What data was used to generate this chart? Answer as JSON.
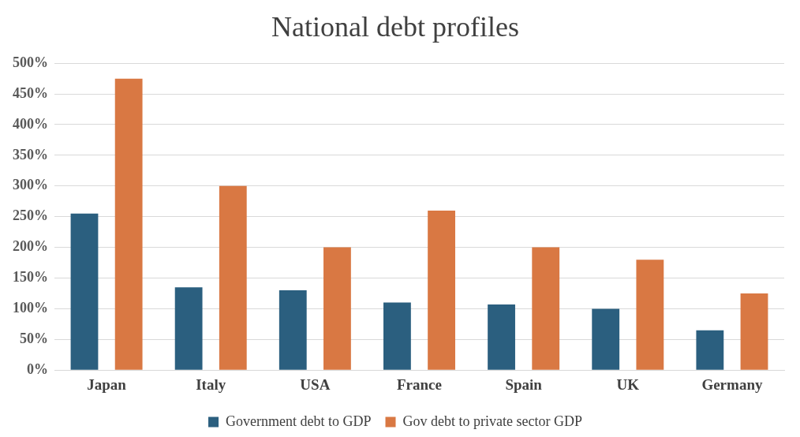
{
  "chart_data": {
    "type": "bar",
    "title": "National debt profiles",
    "categories": [
      "Japan",
      "Italy",
      "USA",
      "France",
      "Spain",
      "UK",
      "Germany"
    ],
    "series": [
      {
        "name": "Government debt to GDP",
        "color": "#2b5f7f",
        "values": [
          255,
          135,
          130,
          110,
          107,
          100,
          65
        ]
      },
      {
        "name": "Gov debt to private sector GDP",
        "color": "#d97843",
        "values": [
          475,
          300,
          200,
          260,
          200,
          180,
          125
        ]
      }
    ],
    "ylim": [
      0,
      500
    ],
    "yticks": [
      {
        "value": 0,
        "label": "0%"
      },
      {
        "value": 50,
        "label": "50%"
      },
      {
        "value": 100,
        "label": "100%"
      },
      {
        "value": 150,
        "label": "150%"
      },
      {
        "value": 200,
        "label": "200%"
      },
      {
        "value": 250,
        "label": "250%"
      },
      {
        "value": 300,
        "label": "300%"
      },
      {
        "value": 350,
        "label": "350%"
      },
      {
        "value": 400,
        "label": "400%"
      },
      {
        "value": 450,
        "label": "450%"
      },
      {
        "value": 500,
        "label": "500%"
      }
    ],
    "grid": "y",
    "legend": "bottom"
  }
}
